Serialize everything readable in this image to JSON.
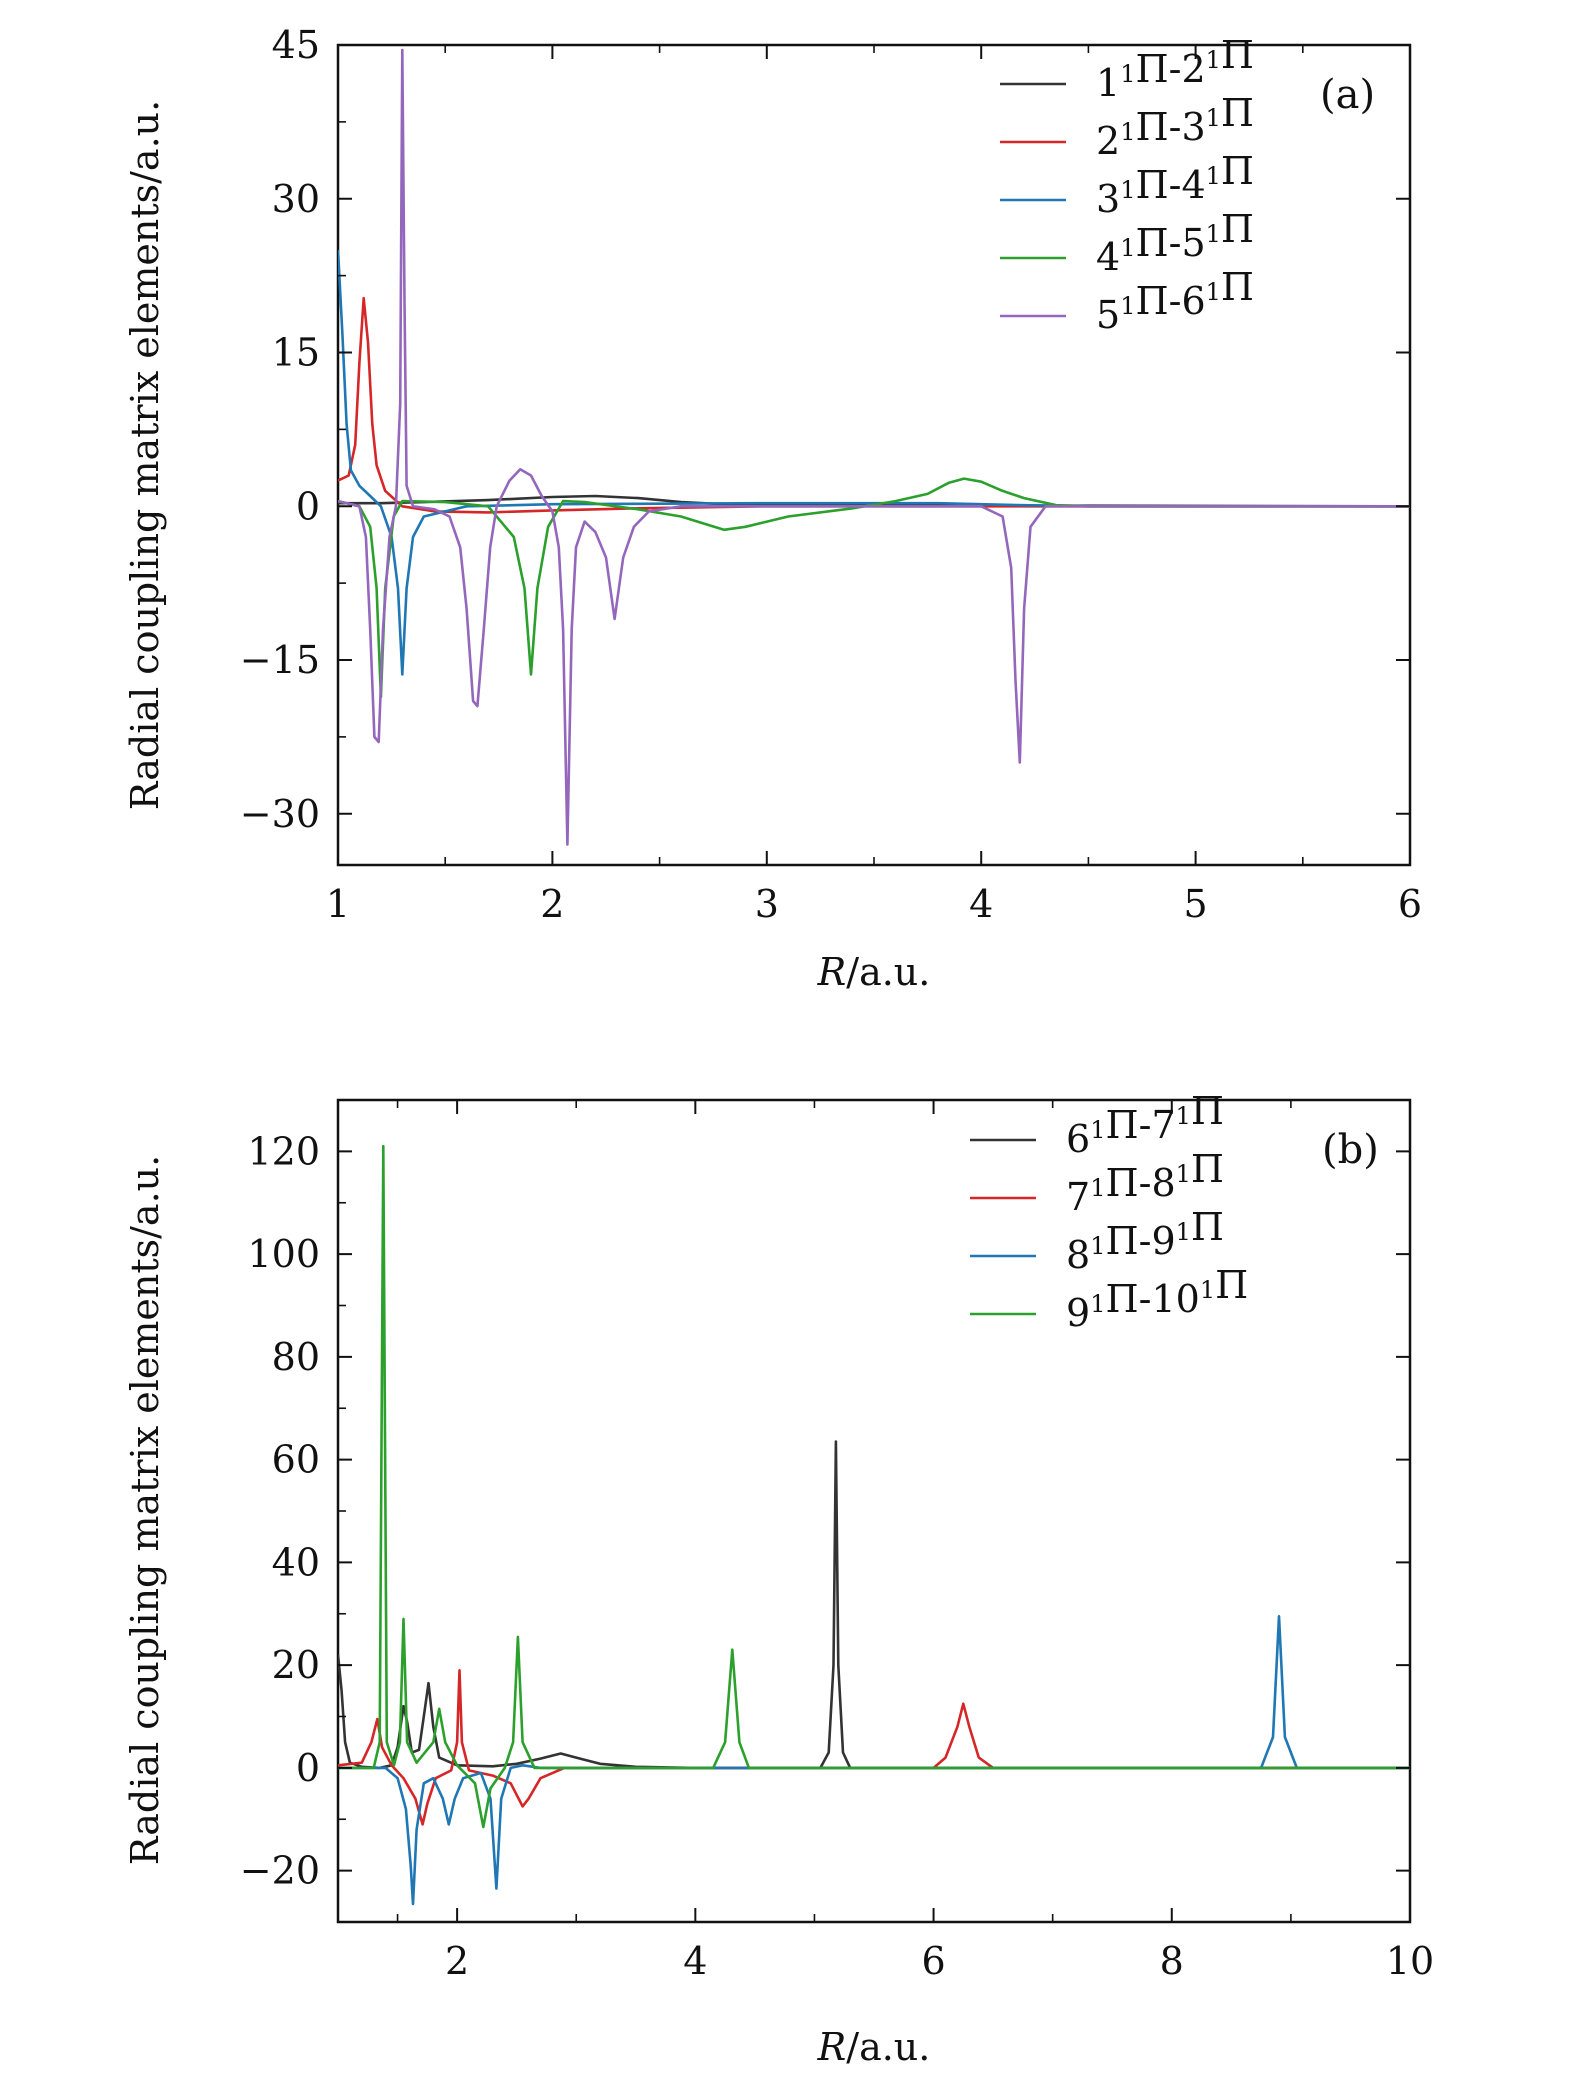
{
  "chart_data": [
    {
      "type": "line",
      "panel_label": "(a)",
      "xlabel": "R/a.u.",
      "ylabel": "Radial coupling matrix elements/a.u.",
      "xlim": [
        1,
        6
      ],
      "ylim": [
        -35,
        45
      ],
      "xticks": [
        1,
        2,
        3,
        4,
        5,
        6
      ],
      "yticks": [
        -30,
        -15,
        0,
        15,
        30,
        45
      ],
      "xtick_labels": [
        "1",
        "2",
        "3",
        "4",
        "5",
        "6"
      ],
      "ytick_labels": [
        "−30",
        "−15",
        "0",
        "15",
        "30",
        "45"
      ],
      "grid": false,
      "legend_position": "top-right",
      "series": [
        {
          "name": "1¹Π-2¹Π",
          "color": "#333333",
          "points": [
            [
              1.0,
              0.3
            ],
            [
              1.2,
              0.3
            ],
            [
              1.4,
              0.4
            ],
            [
              1.7,
              0.6
            ],
            [
              2.0,
              0.9
            ],
            [
              2.2,
              1.0
            ],
            [
              2.4,
              0.8
            ],
            [
              2.6,
              0.4
            ],
            [
              2.8,
              0.2
            ],
            [
              3.2,
              0.1
            ],
            [
              6.0,
              0.0
            ]
          ]
        },
        {
          "name": "2¹Π-3¹Π",
          "color": "#d62728",
          "points": [
            [
              1.0,
              2.5
            ],
            [
              1.05,
              3.0
            ],
            [
              1.08,
              6.0
            ],
            [
              1.1,
              14.0
            ],
            [
              1.12,
              20.3
            ],
            [
              1.14,
              16.0
            ],
            [
              1.16,
              8.0
            ],
            [
              1.18,
              4.0
            ],
            [
              1.22,
              1.5
            ],
            [
              1.3,
              0.0
            ],
            [
              1.45,
              -0.5
            ],
            [
              1.7,
              -0.6
            ],
            [
              2.0,
              -0.4
            ],
            [
              2.4,
              -0.2
            ],
            [
              3.0,
              0.0
            ],
            [
              6.0,
              0.0
            ]
          ]
        },
        {
          "name": "3¹Π-4¹Π",
          "color": "#1f77b4",
          "points": [
            [
              1.0,
              25.0
            ],
            [
              1.02,
              17.0
            ],
            [
              1.04,
              8.0
            ],
            [
              1.06,
              3.5
            ],
            [
              1.1,
              2.0
            ],
            [
              1.15,
              1.0
            ],
            [
              1.2,
              0.0
            ],
            [
              1.25,
              -3.0
            ],
            [
              1.28,
              -8.0
            ],
            [
              1.3,
              -16.4
            ],
            [
              1.32,
              -8.0
            ],
            [
              1.35,
              -3.0
            ],
            [
              1.4,
              -1.0
            ],
            [
              1.6,
              0.0
            ],
            [
              2.0,
              0.2
            ],
            [
              3.0,
              0.3
            ],
            [
              3.8,
              0.3
            ],
            [
              4.2,
              0.1
            ],
            [
              4.5,
              0.0
            ],
            [
              6.0,
              0.0
            ]
          ]
        },
        {
          "name": "4¹Π-5¹Π",
          "color": "#2ca02c",
          "points": [
            [
              1.0,
              0.5
            ],
            [
              1.1,
              0.0
            ],
            [
              1.15,
              -2.0
            ],
            [
              1.18,
              -8.0
            ],
            [
              1.2,
              -18.6
            ],
            [
              1.22,
              -8.0
            ],
            [
              1.26,
              -1.0
            ],
            [
              1.3,
              0.5
            ],
            [
              1.5,
              0.4
            ],
            [
              1.7,
              0.0
            ],
            [
              1.82,
              -3.0
            ],
            [
              1.87,
              -8.0
            ],
            [
              1.9,
              -16.4
            ],
            [
              1.93,
              -8.0
            ],
            [
              1.98,
              -2.0
            ],
            [
              2.05,
              0.5
            ],
            [
              2.15,
              0.4
            ],
            [
              2.4,
              -0.3
            ],
            [
              2.6,
              -1.0
            ],
            [
              2.8,
              -2.3
            ],
            [
              2.9,
              -2.0
            ],
            [
              3.1,
              -1.0
            ],
            [
              3.4,
              -0.2
            ],
            [
              3.6,
              0.5
            ],
            [
              3.75,
              1.2
            ],
            [
              3.85,
              2.3
            ],
            [
              3.92,
              2.7
            ],
            [
              4.0,
              2.4
            ],
            [
              4.1,
              1.5
            ],
            [
              4.2,
              0.8
            ],
            [
              4.35,
              0.1
            ],
            [
              4.5,
              0.0
            ],
            [
              6.0,
              0.0
            ]
          ]
        },
        {
          "name": "5¹Π-6¹Π",
          "color": "#9467bd",
          "points": [
            [
              1.0,
              0.5
            ],
            [
              1.1,
              0.0
            ],
            [
              1.13,
              -3.0
            ],
            [
              1.15,
              -12.0
            ],
            [
              1.17,
              -22.5
            ],
            [
              1.19,
              -23.0
            ],
            [
              1.21,
              -12.0
            ],
            [
              1.24,
              -3.0
            ],
            [
              1.27,
              0.0
            ],
            [
              1.29,
              10.0
            ],
            [
              1.3,
              44.5
            ],
            [
              1.31,
              20.0
            ],
            [
              1.32,
              2.0
            ],
            [
              1.35,
              0.0
            ],
            [
              1.45,
              -0.3
            ],
            [
              1.52,
              -1.0
            ],
            [
              1.57,
              -4.0
            ],
            [
              1.6,
              -10.0
            ],
            [
              1.63,
              -19.0
            ],
            [
              1.65,
              -19.5
            ],
            [
              1.68,
              -12.0
            ],
            [
              1.71,
              -4.0
            ],
            [
              1.74,
              0.0
            ],
            [
              1.8,
              2.5
            ],
            [
              1.85,
              3.6
            ],
            [
              1.9,
              3.0
            ],
            [
              1.95,
              1.0
            ],
            [
              2.0,
              -0.5
            ],
            [
              2.03,
              -4.0
            ],
            [
              2.05,
              -12.0
            ],
            [
              2.07,
              -33.0
            ],
            [
              2.09,
              -12.0
            ],
            [
              2.11,
              -4.0
            ],
            [
              2.15,
              -1.5
            ],
            [
              2.2,
              -2.5
            ],
            [
              2.25,
              -5.0
            ],
            [
              2.29,
              -11.0
            ],
            [
              2.33,
              -5.0
            ],
            [
              2.38,
              -2.0
            ],
            [
              2.45,
              -0.5
            ],
            [
              2.6,
              0.0
            ],
            [
              4.0,
              0.0
            ],
            [
              4.1,
              -1.0
            ],
            [
              4.14,
              -6.0
            ],
            [
              4.16,
              -17.0
            ],
            [
              4.18,
              -25.0
            ],
            [
              4.2,
              -10.0
            ],
            [
              4.23,
              -2.0
            ],
            [
              4.3,
              0.0
            ],
            [
              6.0,
              0.0
            ]
          ]
        }
      ]
    },
    {
      "type": "line",
      "panel_label": "(b)",
      "xlabel": "R/a.u.",
      "ylabel": "Radial coupling matrix elements/a.u.",
      "xlim": [
        1,
        10
      ],
      "ylim": [
        -30,
        130
      ],
      "xticks": [
        2,
        4,
        6,
        8,
        10
      ],
      "yticks": [
        -20,
        0,
        20,
        40,
        60,
        80,
        100,
        120
      ],
      "xtick_labels": [
        "2",
        "4",
        "6",
        "8",
        "10"
      ],
      "ytick_labels": [
        "−20",
        "0",
        "20",
        "40",
        "60",
        "80",
        "100",
        "120"
      ],
      "grid": false,
      "legend_position": "top-right",
      "series": [
        {
          "name": "6¹Π-7¹Π",
          "color": "#333333",
          "points": [
            [
              1.0,
              22.0
            ],
            [
              1.03,
              15.0
            ],
            [
              1.06,
              5.0
            ],
            [
              1.1,
              1.0
            ],
            [
              1.2,
              0.2
            ],
            [
              1.35,
              0.0
            ],
            [
              1.45,
              0.5
            ],
            [
              1.5,
              4.0
            ],
            [
              1.55,
              12.0
            ],
            [
              1.58,
              9.0
            ],
            [
              1.62,
              3.0
            ],
            [
              1.68,
              3.5
            ],
            [
              1.72,
              10.0
            ],
            [
              1.76,
              16.5
            ],
            [
              1.8,
              8.0
            ],
            [
              1.85,
              2.0
            ],
            [
              2.0,
              0.5
            ],
            [
              2.3,
              0.3
            ],
            [
              2.5,
              0.8
            ],
            [
              2.7,
              1.8
            ],
            [
              2.87,
              2.8
            ],
            [
              3.0,
              2.0
            ],
            [
              3.2,
              0.8
            ],
            [
              3.5,
              0.2
            ],
            [
              4.0,
              0.0
            ],
            [
              5.05,
              0.0
            ],
            [
              5.12,
              3.0
            ],
            [
              5.16,
              20.0
            ],
            [
              5.18,
              63.5
            ],
            [
              5.2,
              20.0
            ],
            [
              5.24,
              3.0
            ],
            [
              5.3,
              0.0
            ],
            [
              10.0,
              0.0
            ]
          ]
        },
        {
          "name": "7¹Π-8¹Π",
          "color": "#d62728",
          "points": [
            [
              1.0,
              0.5
            ],
            [
              1.2,
              1.0
            ],
            [
              1.28,
              5.0
            ],
            [
              1.33,
              9.5
            ],
            [
              1.37,
              4.0
            ],
            [
              1.45,
              0.5
            ],
            [
              1.55,
              -2.0
            ],
            [
              1.65,
              -6.0
            ],
            [
              1.71,
              -11.0
            ],
            [
              1.75,
              -7.0
            ],
            [
              1.82,
              -2.0
            ],
            [
              1.95,
              -0.5
            ],
            [
              2.0,
              5.0
            ],
            [
              2.02,
              19.0
            ],
            [
              2.04,
              5.0
            ],
            [
              2.1,
              -0.5
            ],
            [
              2.3,
              -1.5
            ],
            [
              2.45,
              -3.0
            ],
            [
              2.55,
              -7.5
            ],
            [
              2.6,
              -6.0
            ],
            [
              2.7,
              -2.0
            ],
            [
              2.9,
              0.0
            ],
            [
              6.0,
              0.0
            ],
            [
              6.1,
              2.0
            ],
            [
              6.2,
              8.0
            ],
            [
              6.25,
              12.5
            ],
            [
              6.3,
              8.0
            ],
            [
              6.38,
              2.0
            ],
            [
              6.5,
              0.0
            ],
            [
              10.0,
              0.0
            ]
          ]
        },
        {
          "name": "8¹Π-9¹Π",
          "color": "#1f77b4",
          "points": [
            [
              1.0,
              0.0
            ],
            [
              1.4,
              0.0
            ],
            [
              1.5,
              -2.0
            ],
            [
              1.57,
              -8.0
            ],
            [
              1.61,
              -19.0
            ],
            [
              1.63,
              -26.5
            ],
            [
              1.66,
              -12.0
            ],
            [
              1.72,
              -3.0
            ],
            [
              1.8,
              -2.0
            ],
            [
              1.88,
              -6.0
            ],
            [
              1.93,
              -11.0
            ],
            [
              1.98,
              -6.0
            ],
            [
              2.05,
              -2.0
            ],
            [
              2.2,
              -1.0
            ],
            [
              2.28,
              -6.0
            ],
            [
              2.33,
              -23.5
            ],
            [
              2.37,
              -6.0
            ],
            [
              2.45,
              0.0
            ],
            [
              2.55,
              0.5
            ],
            [
              2.7,
              0.0
            ],
            [
              8.75,
              0.0
            ],
            [
              8.85,
              6.0
            ],
            [
              8.9,
              29.5
            ],
            [
              8.95,
              6.0
            ],
            [
              9.05,
              0.0
            ],
            [
              10.0,
              0.0
            ]
          ]
        },
        {
          "name": "9¹Π-10¹Π",
          "color": "#2ca02c",
          "points": [
            [
              1.0,
              0.0
            ],
            [
              1.3,
              0.0
            ],
            [
              1.35,
              5.0
            ],
            [
              1.38,
              121.0
            ],
            [
              1.41,
              5.0
            ],
            [
              1.47,
              0.5
            ],
            [
              1.52,
              5.0
            ],
            [
              1.55,
              29.0
            ],
            [
              1.58,
              5.0
            ],
            [
              1.66,
              1.0
            ],
            [
              1.8,
              5.0
            ],
            [
              1.85,
              11.5
            ],
            [
              1.9,
              5.0
            ],
            [
              2.0,
              0.5
            ],
            [
              2.15,
              -3.0
            ],
            [
              2.22,
              -11.5
            ],
            [
              2.28,
              -4.0
            ],
            [
              2.4,
              0.0
            ],
            [
              2.47,
              5.0
            ],
            [
              2.51,
              25.5
            ],
            [
              2.55,
              5.0
            ],
            [
              2.65,
              0.0
            ],
            [
              4.15,
              0.0
            ],
            [
              4.25,
              5.0
            ],
            [
              4.31,
              23.0
            ],
            [
              4.37,
              5.0
            ],
            [
              4.45,
              0.0
            ],
            [
              10.0,
              0.0
            ]
          ]
        }
      ]
    }
  ]
}
